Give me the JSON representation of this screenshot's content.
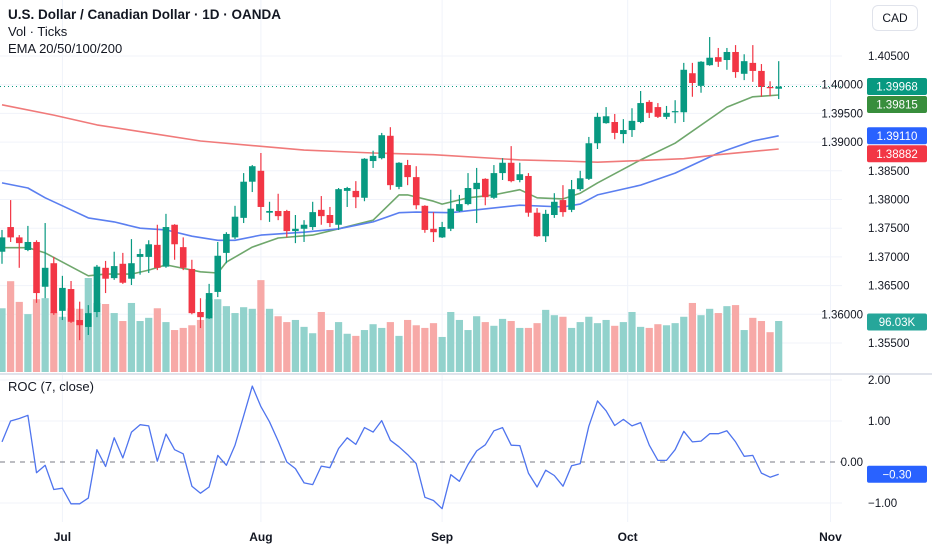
{
  "header": {
    "title": "U.S. Dollar / Canadian Dollar · 1D · OANDA",
    "volume_label": "Vol · Ticks",
    "ema_label": "EMA 20/50/100/200",
    "currency_button": "CAD"
  },
  "roc_pane": {
    "label": "ROC (7, close)"
  },
  "colors": {
    "up": "#089981",
    "down": "#f23645",
    "vol_up": "#92d2cc",
    "vol_down": "#f7a9a7",
    "ema20": "#6fa76c",
    "ema50": "#5b7ff0",
    "ema100": "#f07a7a",
    "roc_line": "#4f74ee",
    "grid": "#f0f3fa"
  },
  "chart_data": {
    "type": "candlestick",
    "title": "U.S. Dollar / Canadian Dollar · 1D · OANDA",
    "price_axis": {
      "ylim": [
        1.3525,
        1.4085
      ],
      "ticks": [
        "1.40500",
        "1.40000",
        "1.39500",
        "1.39000",
        "1.38500",
        "1.38000",
        "1.37500",
        "1.37000",
        "1.36500",
        "1.36000",
        "1.35500"
      ]
    },
    "time_axis": [
      {
        "label": "Jul",
        "bar": 7
      },
      {
        "label": "Aug",
        "bar": 30
      },
      {
        "label": "Sep",
        "bar": 51
      },
      {
        "label": "Oct",
        "bar": 72.5
      },
      {
        "label": "Nov",
        "bar": 96
      }
    ],
    "ohlc": [
      [
        1.3709,
        1.3747,
        1.3688,
        1.3734
      ],
      [
        1.3752,
        1.3799,
        1.3726,
        1.3734
      ],
      [
        1.3734,
        1.3738,
        1.3681,
        1.3724
      ],
      [
        1.3712,
        1.3754,
        1.371,
        1.3726
      ],
      [
        1.3726,
        1.3729,
        1.362,
        1.3637
      ],
      [
        1.3648,
        1.3759,
        1.3628,
        1.3681
      ],
      [
        1.3689,
        1.37,
        1.3599,
        1.3602
      ],
      [
        1.3606,
        1.3667,
        1.359,
        1.3646
      ],
      [
        1.3644,
        1.3658,
        1.3585,
        1.3587
      ],
      [
        1.359,
        1.3622,
        1.3555,
        1.3581
      ],
      [
        1.3578,
        1.3616,
        1.3564,
        1.3602
      ],
      [
        1.3604,
        1.3686,
        1.3595,
        1.3683
      ],
      [
        1.3681,
        1.3693,
        1.3637,
        1.3662
      ],
      [
        1.3663,
        1.3709,
        1.366,
        1.3684
      ],
      [
        1.3688,
        1.3707,
        1.3653,
        1.3655
      ],
      [
        1.3662,
        1.3731,
        1.3651,
        1.3689
      ],
      [
        1.37,
        1.3714,
        1.3669,
        1.3705
      ],
      [
        1.37,
        1.3729,
        1.3672,
        1.3722
      ],
      [
        1.3721,
        1.3756,
        1.3677,
        1.3681
      ],
      [
        1.3683,
        1.3775,
        1.3681,
        1.3752
      ],
      [
        1.3756,
        1.3757,
        1.3695,
        1.3722
      ],
      [
        1.3717,
        1.3734,
        1.3677,
        1.3681
      ],
      [
        1.3679,
        1.3695,
        1.36,
        1.3602
      ],
      [
        1.3604,
        1.3628,
        1.3576,
        1.3595
      ],
      [
        1.3593,
        1.3653,
        1.3592,
        1.3637
      ],
      [
        1.3639,
        1.3726,
        1.363,
        1.3702
      ],
      [
        1.3707,
        1.3743,
        1.3689,
        1.374
      ],
      [
        1.3734,
        1.3789,
        1.3731,
        1.377
      ],
      [
        1.3768,
        1.3846,
        1.3759,
        1.3831
      ],
      [
        1.3831,
        1.386,
        1.3813,
        1.3858
      ],
      [
        1.385,
        1.3881,
        1.3764,
        1.3787
      ],
      [
        1.3777,
        1.3796,
        1.3761,
        1.378
      ],
      [
        1.378,
        1.381,
        1.3764,
        1.3771
      ],
      [
        1.378,
        1.3782,
        1.3734,
        1.3745
      ],
      [
        1.3745,
        1.3773,
        1.3724,
        1.3749
      ],
      [
        1.3749,
        1.3764,
        1.3726,
        1.3756
      ],
      [
        1.3752,
        1.3796,
        1.3747,
        1.3778
      ],
      [
        1.3782,
        1.3806,
        1.3756,
        1.3771
      ],
      [
        1.3773,
        1.3787,
        1.3752,
        1.3759
      ],
      [
        1.3756,
        1.382,
        1.3747,
        1.3818
      ],
      [
        1.3815,
        1.3822,
        1.3787,
        1.382
      ],
      [
        1.3815,
        1.3832,
        1.3785,
        1.3804
      ],
      [
        1.3803,
        1.3872,
        1.3797,
        1.3871
      ],
      [
        1.3867,
        1.3885,
        1.3855,
        1.3876
      ],
      [
        1.3872,
        1.3916,
        1.387,
        1.3912
      ],
      [
        1.3911,
        1.3926,
        1.3817,
        1.3825
      ],
      [
        1.3822,
        1.3865,
        1.3818,
        1.3864
      ],
      [
        1.386,
        1.3869,
        1.3825,
        1.3839
      ],
      [
        1.3839,
        1.3858,
        1.3783,
        1.379
      ],
      [
        1.3789,
        1.379,
        1.3742,
        1.3747
      ],
      [
        1.3749,
        1.3778,
        1.3726,
        1.3743
      ],
      [
        1.3734,
        1.3761,
        1.3733,
        1.3752
      ],
      [
        1.3749,
        1.3817,
        1.3745,
        1.3784
      ],
      [
        1.378,
        1.3808,
        1.3778,
        1.3792
      ],
      [
        1.3792,
        1.3846,
        1.379,
        1.382
      ],
      [
        1.3818,
        1.3855,
        1.3759,
        1.3829
      ],
      [
        1.3836,
        1.3837,
        1.379,
        1.3804
      ],
      [
        1.3803,
        1.386,
        1.3801,
        1.3846
      ],
      [
        1.3846,
        1.3872,
        1.3834,
        1.3864
      ],
      [
        1.3864,
        1.3893,
        1.383,
        1.3832
      ],
      [
        1.3834,
        1.3864,
        1.383,
        1.3844
      ],
      [
        1.3841,
        1.3846,
        1.377,
        1.3777
      ],
      [
        1.3777,
        1.3785,
        1.3735,
        1.3736
      ],
      [
        1.3736,
        1.3782,
        1.3726,
        1.3775
      ],
      [
        1.3773,
        1.3811,
        1.3768,
        1.3796
      ],
      [
        1.3799,
        1.3825,
        1.377,
        1.3778
      ],
      [
        1.3782,
        1.3834,
        1.3778,
        1.3818
      ],
      [
        1.3818,
        1.385,
        1.3815,
        1.3837
      ],
      [
        1.3836,
        1.3909,
        1.3834,
        1.3898
      ],
      [
        1.3898,
        1.3951,
        1.3888,
        1.3944
      ],
      [
        1.3933,
        1.3961,
        1.3932,
        1.3945
      ],
      [
        1.3935,
        1.3949,
        1.3905,
        1.3916
      ],
      [
        1.3914,
        1.394,
        1.3898,
        1.3921
      ],
      [
        1.3921,
        1.3959,
        1.3909,
        1.3937
      ],
      [
        1.3935,
        1.3989,
        1.3933,
        1.3968
      ],
      [
        1.397,
        1.3973,
        1.3942,
        1.3951
      ],
      [
        1.3961,
        1.3968,
        1.3942,
        1.3944
      ],
      [
        1.3944,
        1.3963,
        1.394,
        1.3951
      ],
      [
        1.3952,
        1.3973,
        1.3933,
        1.3954
      ],
      [
        1.3952,
        1.4038,
        1.3935,
        1.4026
      ],
      [
        1.402,
        1.4038,
        1.3979,
        1.4003
      ],
      [
        1.3998,
        1.4041,
        1.3986,
        1.404
      ],
      [
        1.4034,
        1.4083,
        1.4033,
        1.4047
      ],
      [
        1.4048,
        1.4064,
        1.4031,
        1.404
      ],
      [
        1.4043,
        1.4064,
        1.4026,
        1.4057
      ],
      [
        1.4057,
        1.4069,
        1.4012,
        1.4022
      ],
      [
        1.4019,
        1.4053,
        1.4008,
        1.4041
      ],
      [
        1.4038,
        1.4069,
        1.4005,
        1.4024
      ],
      [
        1.4024,
        1.4036,
        1.3979,
        1.3996
      ],
      [
        1.3996,
        1.4006,
        1.398,
        1.3994
      ],
      [
        1.3993,
        1.4041,
        1.3975,
        1.39968
      ]
    ],
    "volume_k": [
      120,
      171,
      132,
      109,
      137,
      139,
      113,
      104,
      120,
      119,
      177,
      130,
      128,
      111,
      96,
      130,
      96,
      102,
      120,
      94,
      79,
      83,
      88,
      98,
      137,
      137,
      124,
      111,
      122,
      119,
      173,
      119,
      105,
      94,
      98,
      85,
      73,
      113,
      79,
      94,
      72,
      68,
      79,
      90,
      83,
      94,
      68,
      98,
      88,
      83,
      92,
      66,
      113,
      98,
      79,
      105,
      94,
      87,
      100,
      96,
      83,
      83,
      92,
      117,
      107,
      104,
      83,
      94,
      104,
      92,
      98,
      87,
      94,
      113,
      85,
      83,
      90,
      88,
      92,
      104,
      130,
      107,
      119,
      111,
      124,
      126,
      79,
      102,
      96,
      75,
      96.03
    ],
    "ema": [
      {
        "name": "EMA 20",
        "last": "1.39815",
        "points": [
          [
            0,
            1.3716
          ],
          [
            3,
            1.3716
          ],
          [
            5,
            1.3707
          ],
          [
            7,
            1.3691
          ],
          [
            10,
            1.3667
          ],
          [
            12,
            1.367
          ],
          [
            15,
            1.367
          ],
          [
            17,
            1.3677
          ],
          [
            19,
            1.3686
          ],
          [
            23,
            1.3674
          ],
          [
            25,
            1.3672
          ],
          [
            26,
            1.3691
          ],
          [
            29,
            1.3717
          ],
          [
            32,
            1.3733
          ],
          [
            36,
            1.3738
          ],
          [
            39,
            1.3749
          ],
          [
            43,
            1.3764
          ],
          [
            46,
            1.3808
          ],
          [
            47,
            1.3808
          ],
          [
            50,
            1.3797
          ],
          [
            51,
            1.3792
          ],
          [
            54,
            1.3803
          ],
          [
            57,
            1.3808
          ],
          [
            60,
            1.3817
          ],
          [
            62,
            1.3803
          ],
          [
            65,
            1.3801
          ],
          [
            67,
            1.3811
          ],
          [
            69,
            1.3829
          ],
          [
            74,
            1.3869
          ],
          [
            78,
            1.3898
          ],
          [
            84,
            1.3961
          ],
          [
            87,
            1.3979
          ],
          [
            90,
            1.3982
          ]
        ]
      },
      {
        "name": "EMA 50",
        "last": "1.39110",
        "points": [
          [
            0,
            1.3829
          ],
          [
            3,
            1.382
          ],
          [
            5,
            1.3803
          ],
          [
            8,
            1.3782
          ],
          [
            10,
            1.3768
          ],
          [
            13,
            1.3761
          ],
          [
            16,
            1.375
          ],
          [
            19,
            1.3747
          ],
          [
            22,
            1.3736
          ],
          [
            25,
            1.3729
          ],
          [
            27,
            1.3729
          ],
          [
            30,
            1.3738
          ],
          [
            35,
            1.3743
          ],
          [
            39,
            1.3749
          ],
          [
            43,
            1.3761
          ],
          [
            46,
            1.3777
          ],
          [
            48,
            1.3778
          ],
          [
            52,
            1.3777
          ],
          [
            55,
            1.3782
          ],
          [
            60,
            1.379
          ],
          [
            65,
            1.3787
          ],
          [
            67,
            1.3792
          ],
          [
            69,
            1.3808
          ],
          [
            74,
            1.3825
          ],
          [
            78,
            1.3846
          ],
          [
            83,
            1.3881
          ],
          [
            87,
            1.3902
          ],
          [
            90,
            1.3911
          ]
        ]
      },
      {
        "name": "EMA 100",
        "last": "1.38882",
        "points": [
          [
            0,
            1.3965
          ],
          [
            6,
            1.3947
          ],
          [
            11,
            1.393
          ],
          [
            17,
            1.3916
          ],
          [
            23,
            1.3902
          ],
          [
            35,
            1.3886
          ],
          [
            43,
            1.3881
          ],
          [
            50,
            1.3878
          ],
          [
            60,
            1.3869
          ],
          [
            65,
            1.3867
          ],
          [
            69,
            1.3865
          ],
          [
            79,
            1.3871
          ],
          [
            83,
            1.3878
          ],
          [
            90,
            1.3888
          ]
        ]
      }
    ],
    "last_price": "1.39968",
    "last_volume": "96.03K",
    "roc": {
      "label": "ROC (7, close)",
      "ylim": [
        -1.4,
        2.2
      ],
      "ticks": [
        "2.00",
        "1.00",
        "0.00",
        "−1.00"
      ],
      "last": "−0.30",
      "values": [
        0.49,
        1.0,
        1.06,
        1.14,
        -0.26,
        -0.08,
        -0.67,
        -0.64,
        -1.02,
        -1.02,
        -0.88,
        0.3,
        -0.11,
        0.59,
        0.1,
        0.73,
        0.91,
        0.88,
        0.02,
        0.68,
        0.3,
        0.2,
        -0.59,
        -0.76,
        -0.61,
        0.16,
        -0.08,
        0.41,
        1.12,
        1.85,
        1.35,
        0.98,
        0.51,
        0.0,
        -0.16,
        -0.51,
        -0.55,
        -0.1,
        -0.14,
        0.33,
        0.59,
        0.43,
        0.84,
        0.73,
        1.01,
        0.53,
        0.37,
        0.18,
        -0.04,
        -0.86,
        -0.94,
        -1.14,
        -0.31,
        -0.47,
        -0.06,
        0.27,
        0.42,
        0.76,
        0.84,
        0.41,
        0.4,
        -0.27,
        -0.61,
        -0.2,
        -0.33,
        -0.59,
        -0.09,
        -0.04,
        0.87,
        1.49,
        1.25,
        0.89,
        1.04,
        0.88,
        0.96,
        0.41,
        0.04,
        0.04,
        0.3,
        0.75,
        0.49,
        0.51,
        0.69,
        0.69,
        0.76,
        0.49,
        0.14,
        0.16,
        -0.27,
        -0.37,
        -0.3
      ]
    }
  }
}
